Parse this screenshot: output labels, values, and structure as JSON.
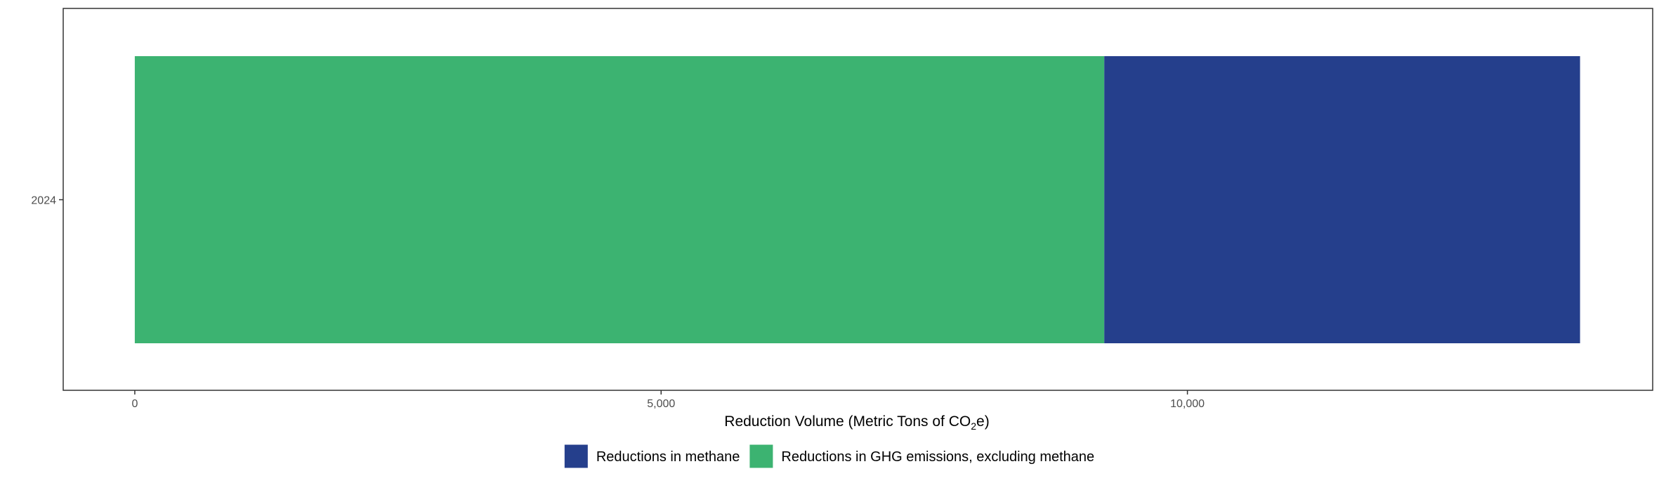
{
  "chart_data": {
    "type": "bar",
    "orientation": "horizontal",
    "stacked": true,
    "categories": [
      "2024"
    ],
    "series": [
      {
        "name": "Reductions in GHG emissions, excluding methane",
        "values": [
          9210
        ],
        "color": "#3cb371"
      },
      {
        "name": "Reductions in methane",
        "values": [
          4520
        ],
        "color": "#253f8c"
      }
    ],
    "xlabel": "Reduction Volume (Metric Tons of CO",
    "xlabel_subscript": "2",
    "xlabel_suffix": "e)",
    "x_ticks": [
      0,
      5000,
      10000
    ],
    "x_tick_labels": [
      "0",
      "5,000",
      "10,000"
    ],
    "xlim": [
      -680,
      14420
    ],
    "grid": false,
    "legend": {
      "position": "bottom",
      "entries": [
        {
          "label": "Reductions in methane",
          "color": "#253f8c"
        },
        {
          "label": "Reductions in GHG emissions, excluding methane",
          "color": "#3cb371"
        }
      ]
    }
  }
}
